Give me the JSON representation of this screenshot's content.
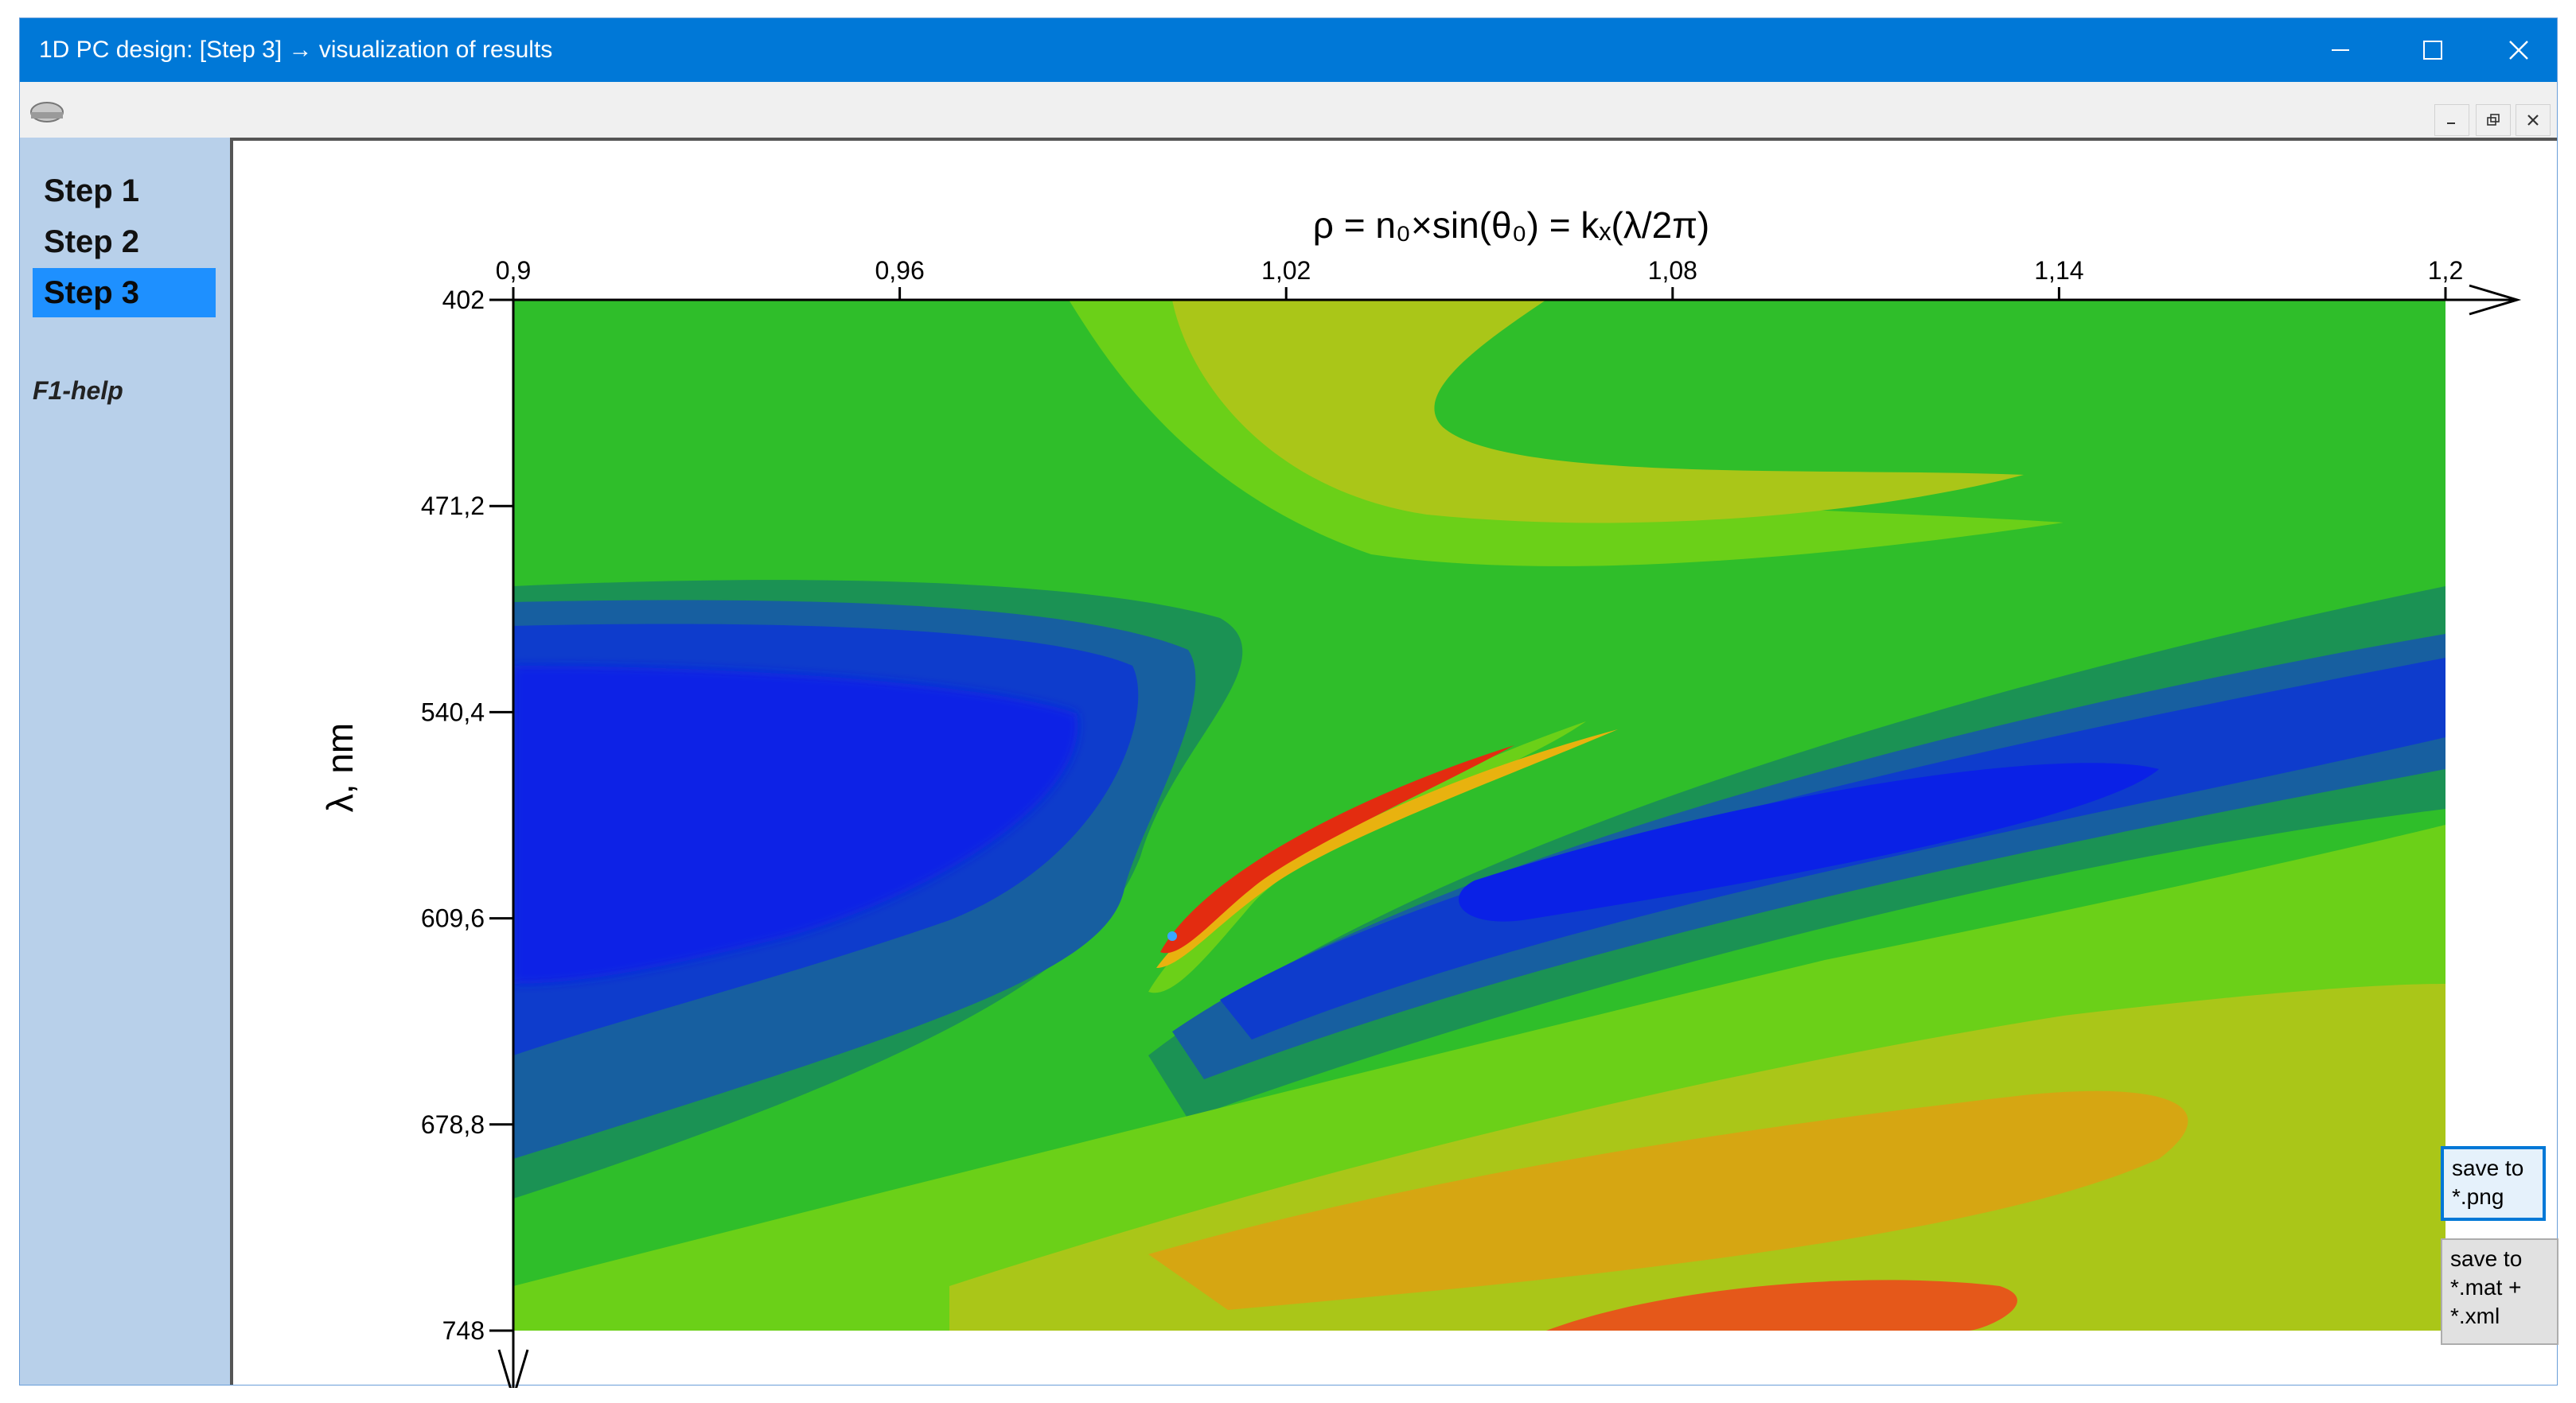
{
  "window": {
    "title": "1D PC design: [Step 3] → visualization of results"
  },
  "sidebar": {
    "items": [
      {
        "label": "Step 1",
        "selected": false
      },
      {
        "label": "Step 2",
        "selected": false
      },
      {
        "label": "Step 3",
        "selected": true
      }
    ],
    "help": "F1-help"
  },
  "buttons": {
    "save_png": "save to\n*.png",
    "save_mat": "save to\n*.mat +\n*.xml"
  },
  "colors": {
    "titlebar": "#0078d7",
    "sidebar": "#b8d0ea",
    "selected_item": "#1e90ff"
  },
  "chart_data": {
    "type": "heatmap",
    "xlabel": "ρ = n₀×sin(θ₀) = kₓ(λ/2π)",
    "ylabel": "λ, nm",
    "xlim": [
      0.9,
      1.2
    ],
    "ylim": [
      402,
      748
    ],
    "x_ticks": [
      "0,9",
      "0,96",
      "1,02",
      "1,08",
      "1,14",
      "1,2"
    ],
    "y_ticks": [
      "402",
      "471,2",
      "540,4",
      "609,6",
      "678,8",
      "748"
    ],
    "x_axis_position": "top",
    "y_axis_inverted": true,
    "colormap": "jet (filled contours)",
    "features": [
      {
        "name": "minimum band",
        "color": "#0a2fd6"
      },
      {
        "name": "resonance peak",
        "color": "#e32c10",
        "x": 1.002,
        "y": 573
      }
    ]
  }
}
